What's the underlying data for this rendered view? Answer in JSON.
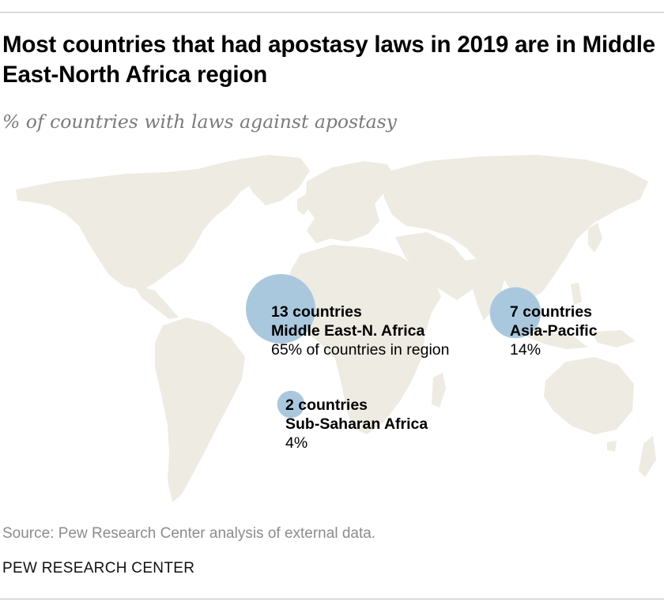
{
  "title": "Most countries that had apostasy laws in 2019 are in Middle East-North Africa region",
  "subtitle": "% of countries with laws against apostasy",
  "colors": {
    "land": "#edebe2",
    "bubble": "#a9c8de",
    "title_text": "#000000",
    "subtitle_text": "#7a7a7a",
    "source_text": "#8c8c8c"
  },
  "bubbles": [
    {
      "id": "mena",
      "count_label": "13 countries",
      "region_label": "Middle East-N. Africa",
      "share_label": "65% of countries in region",
      "countries": 13,
      "share_percent": 65
    },
    {
      "id": "asia",
      "count_label": "7 countries",
      "region_label": "Asia-Pacific",
      "share_label": "14%",
      "countries": 7,
      "share_percent": 14
    },
    {
      "id": "ssa",
      "count_label": "2 countries",
      "region_label": "Sub-Saharan Africa",
      "share_label": "4%",
      "countries": 2,
      "share_percent": 4
    }
  ],
  "source": "Source: Pew Research Center analysis of external data.",
  "brand": "PEW RESEARCH CENTER"
}
